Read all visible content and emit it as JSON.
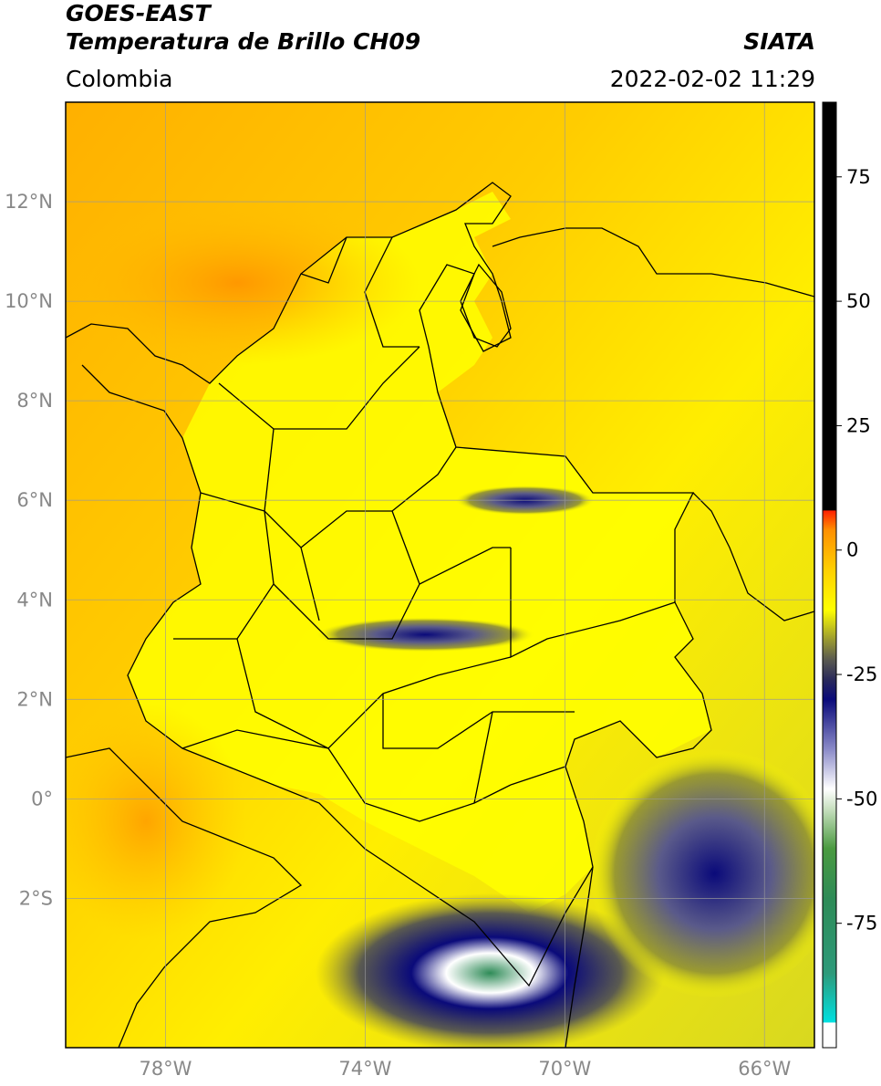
{
  "header": {
    "satellite": "GOES-EAST",
    "product": "Temperatura de Brillo CH09",
    "region": "Colombia",
    "brand": "SIATA",
    "datetime": "2022-02-02 11:29"
  },
  "map": {
    "lon_range": [
      -80,
      -65
    ],
    "lat_range": [
      -5,
      14
    ],
    "lat_ticks": [
      {
        "value": 12,
        "label": "12°N"
      },
      {
        "value": 10,
        "label": "10°N"
      },
      {
        "value": 8,
        "label": "8°N"
      },
      {
        "value": 6,
        "label": "6°N"
      },
      {
        "value": 4,
        "label": "4°N"
      },
      {
        "value": 2,
        "label": "2°N"
      },
      {
        "value": 0,
        "label": "0°"
      },
      {
        "value": -2,
        "label": "2°S"
      }
    ],
    "lon_ticks": [
      {
        "value": -78,
        "label": "78°W"
      },
      {
        "value": -74,
        "label": "74°W"
      },
      {
        "value": -70,
        "label": "70°W"
      },
      {
        "value": -66,
        "label": "66°W"
      }
    ],
    "grid": true,
    "cloud_regions": [
      {
        "name": "amazon-south",
        "lon": -71.5,
        "lat": -3.5,
        "rx": 3.5,
        "ry": 1.6,
        "level": "cold"
      },
      {
        "name": "llanos-band",
        "lon": -72.8,
        "lat": 3.3,
        "rx": 2.2,
        "ry": 0.35,
        "level": "cool"
      },
      {
        "name": "arauca-band",
        "lon": -70.8,
        "lat": 6.0,
        "rx": 1.4,
        "ry": 0.3,
        "level": "cool"
      },
      {
        "name": "southeast",
        "lon": -67.0,
        "lat": -1.5,
        "rx": 2.5,
        "ry": 2.5,
        "level": "cool"
      }
    ]
  },
  "colorbar": {
    "range": [
      -100,
      90
    ],
    "ticks": [
      {
        "value": 75,
        "label": "75"
      },
      {
        "value": 50,
        "label": "50"
      },
      {
        "value": 25,
        "label": "25"
      },
      {
        "value": 0,
        "label": "0"
      },
      {
        "value": -25,
        "label": "-25"
      },
      {
        "value": -50,
        "label": "-50"
      },
      {
        "value": -75,
        "label": "-75"
      }
    ],
    "stops": [
      {
        "value": -100,
        "color": "#ffffff"
      },
      {
        "value": -95,
        "color": "#ffffff"
      },
      {
        "value": -94.9,
        "color": "#00e0e0"
      },
      {
        "value": -85,
        "color": "#2e9a7a"
      },
      {
        "value": -70,
        "color": "#2e8b57"
      },
      {
        "value": -60,
        "color": "#4a9a40"
      },
      {
        "value": -52,
        "color": "#c8e0c0"
      },
      {
        "value": -48,
        "color": "#ffffff"
      },
      {
        "value": -40,
        "color": "#8a8ac8"
      },
      {
        "value": -30,
        "color": "#0a0a7a"
      },
      {
        "value": -26,
        "color": "#2a2a5a"
      },
      {
        "value": -22,
        "color": "#5a5a50"
      },
      {
        "value": -18,
        "color": "#9a9a30"
      },
      {
        "value": -12,
        "color": "#ffff00"
      },
      {
        "value": -4,
        "color": "#ffd000"
      },
      {
        "value": 4,
        "color": "#ff9000"
      },
      {
        "value": 7.9,
        "color": "#ff2000"
      },
      {
        "value": 8,
        "color": "#000000"
      },
      {
        "value": 90,
        "color": "#000000"
      }
    ]
  },
  "colors": {
    "sea_warm": "#ffa000",
    "land_yellow": "#ffff00",
    "cloud_cold": "#0a0a7a",
    "cloud_core": "#2e8b57",
    "cloud_mid": "#5a5a50",
    "border": "#000000",
    "grid": "#999999"
  }
}
